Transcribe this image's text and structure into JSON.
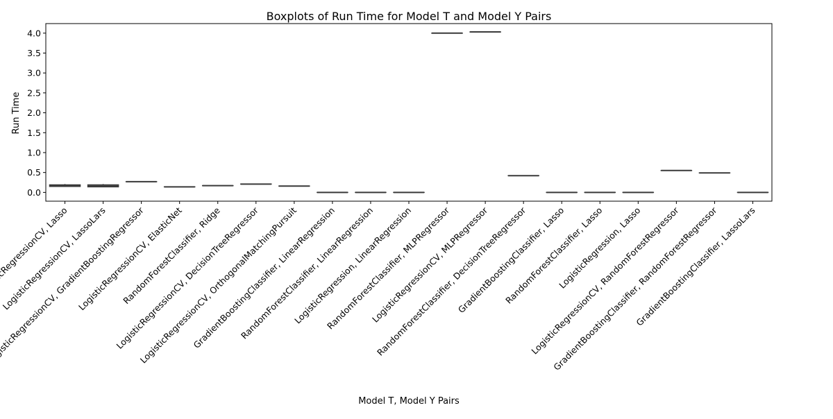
{
  "chart_data": {
    "type": "box",
    "title": "Boxplots of Run Time for Model T and Model Y Pairs",
    "xlabel": "Model T, Model Y Pairs",
    "ylabel": "Run Time",
    "ylim": [
      -0.22,
      4.24
    ],
    "yticks": [
      0.0,
      0.5,
      1.0,
      1.5,
      2.0,
      2.5,
      3.0,
      3.5,
      4.0
    ],
    "ytick_labels": [
      "0.0",
      "0.5",
      "1.0",
      "1.5",
      "2.0",
      "2.5",
      "3.0",
      "3.5",
      "4.0"
    ],
    "grid": false,
    "box_color": "#3a3a3a",
    "categories": [
      "LogisticRegressionCV, Lasso",
      "LogisticRegressionCV, LassoLars",
      "LogisticRegressionCV, GradientBoostingRegressor",
      "LogisticRegressionCV, ElasticNet",
      "RandomForestClassifier, Ridge",
      "LogisticRegressionCV, DecisionTreeRegressor",
      "LogisticRegressionCV, OrthogonalMatchingPursuit",
      "GradientBoostingClassifier, LinearRegression",
      "RandomForestClassifier, LinearRegression",
      "LogisticRegression, LinearRegression",
      "RandomForestClassifier, MLPRegressor",
      "LogisticRegressionCV, MLPRegressor",
      "RandomForestClassifier, DecisionTreeRegressor",
      "GradientBoostingClassifier, Lasso",
      "RandomForestClassifier, Lasso",
      "LogisticRegression, Lasso",
      "LogisticRegressionCV, RandomForestRegressor",
      "GradientBoostingClassifier, RandomForestRegressor",
      "GradientBoostingClassifier, LassoLars"
    ],
    "boxes": [
      {
        "min": 0.14,
        "q1": 0.15,
        "median": 0.17,
        "q3": 0.19,
        "max": 0.21
      },
      {
        "min": 0.13,
        "q1": 0.14,
        "median": 0.16,
        "q3": 0.19,
        "max": 0.21
      },
      {
        "min": 0.27,
        "q1": 0.27,
        "median": 0.27,
        "q3": 0.27,
        "max": 0.27
      },
      {
        "min": 0.14,
        "q1": 0.14,
        "median": 0.14,
        "q3": 0.14,
        "max": 0.14
      },
      {
        "min": 0.17,
        "q1": 0.17,
        "median": 0.17,
        "q3": 0.17,
        "max": 0.17
      },
      {
        "min": 0.21,
        "q1": 0.21,
        "median": 0.21,
        "q3": 0.21,
        "max": 0.21
      },
      {
        "min": 0.16,
        "q1": 0.16,
        "median": 0.16,
        "q3": 0.16,
        "max": 0.16
      },
      {
        "min": 0.0,
        "q1": 0.0,
        "median": 0.0,
        "q3": 0.0,
        "max": 0.0
      },
      {
        "min": 0.0,
        "q1": 0.0,
        "median": 0.0,
        "q3": 0.0,
        "max": 0.0
      },
      {
        "min": 0.0,
        "q1": 0.0,
        "median": 0.0,
        "q3": 0.0,
        "max": 0.0
      },
      {
        "min": 4.0,
        "q1": 4.0,
        "median": 4.0,
        "q3": 4.0,
        "max": 4.0
      },
      {
        "min": 4.03,
        "q1": 4.03,
        "median": 4.03,
        "q3": 4.03,
        "max": 4.03
      },
      {
        "min": 0.42,
        "q1": 0.42,
        "median": 0.42,
        "q3": 0.42,
        "max": 0.42
      },
      {
        "min": 0.0,
        "q1": 0.0,
        "median": 0.0,
        "q3": 0.0,
        "max": 0.0
      },
      {
        "min": 0.0,
        "q1": 0.0,
        "median": 0.0,
        "q3": 0.0,
        "max": 0.0
      },
      {
        "min": 0.0,
        "q1": 0.0,
        "median": 0.0,
        "q3": 0.0,
        "max": 0.0
      },
      {
        "min": 0.55,
        "q1": 0.55,
        "median": 0.55,
        "q3": 0.55,
        "max": 0.55
      },
      {
        "min": 0.49,
        "q1": 0.49,
        "median": 0.49,
        "q3": 0.49,
        "max": 0.49
      },
      {
        "min": 0.0,
        "q1": 0.0,
        "median": 0.0,
        "q3": 0.0,
        "max": 0.0
      }
    ]
  }
}
